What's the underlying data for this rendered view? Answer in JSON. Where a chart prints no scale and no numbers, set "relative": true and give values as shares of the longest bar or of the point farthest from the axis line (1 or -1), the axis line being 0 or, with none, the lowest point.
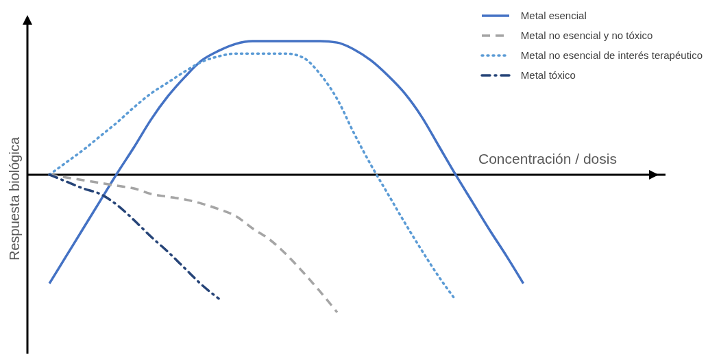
{
  "chart_data": {
    "type": "line",
    "relative": true,
    "xlabel": "Concentración / dosis",
    "ylabel": "Respuesta biológica",
    "legend": "top right",
    "marker": "none",
    "categories": [
      null,
      null,
      null,
      null,
      null,
      null,
      null,
      null,
      null,
      null,
      null,
      null,
      null,
      null,
      null,
      null,
      null,
      null,
      null,
      null,
      null,
      null,
      null,
      null,
      null,
      null,
      null,
      null,
      null
    ],
    "series": [
      {
        "name": "Metal esencial",
        "color": "#4472c4",
        "line_style": "solid",
        "values": [
          -0.79,
          -0.59,
          -0.39,
          -0.19,
          0.01,
          0.2,
          0.4,
          0.57,
          0.71,
          0.83,
          0.9,
          0.95,
          0.97,
          0.97,
          0.97,
          0.97,
          0.97,
          0.96,
          0.91,
          0.83,
          0.72,
          0.59,
          0.42,
          0.21,
          0,
          -0.2,
          -0.4,
          -0.59,
          -0.79
        ]
      },
      {
        "name": "Metal no esencial y no tóxico",
        "color": "#a5a5a5",
        "line_style": "dashed",
        "values": [
          0,
          -0.02,
          -0.04,
          -0.06,
          -0.08,
          -0.1,
          -0.14,
          -0.16,
          -0.18,
          -0.21,
          -0.25,
          -0.3,
          -0.39,
          -0.47,
          -0.58,
          -0.71,
          -0.85,
          -1,
          null,
          null,
          null,
          null,
          null,
          null,
          null,
          null,
          null,
          null,
          null
        ]
      },
      {
        "name": "Metal no esencial de interés terapéutico",
        "color": "#5b9bd5",
        "line_style": "dotted",
        "values": [
          0,
          0.09,
          0.18,
          0.28,
          0.38,
          0.49,
          0.59,
          0.67,
          0.75,
          0.82,
          0.86,
          0.88,
          0.88,
          0.88,
          0.88,
          0.85,
          0.73,
          0.55,
          0.3,
          0.07,
          -0.14,
          -0.35,
          -0.55,
          -0.74,
          -0.91,
          null,
          null,
          null,
          null
        ]
      },
      {
        "name": "Metal tóxico",
        "color": "#264478",
        "line_style": "dashdot",
        "values": [
          0,
          -0.05,
          -0.1,
          -0.14,
          -0.22,
          -0.33,
          -0.45,
          -0.56,
          -0.68,
          -0.8,
          -0.9,
          null,
          null,
          null,
          null,
          null,
          null,
          null,
          null,
          null,
          null,
          null,
          null,
          null,
          null,
          null,
          null,
          null,
          null
        ]
      }
    ]
  }
}
